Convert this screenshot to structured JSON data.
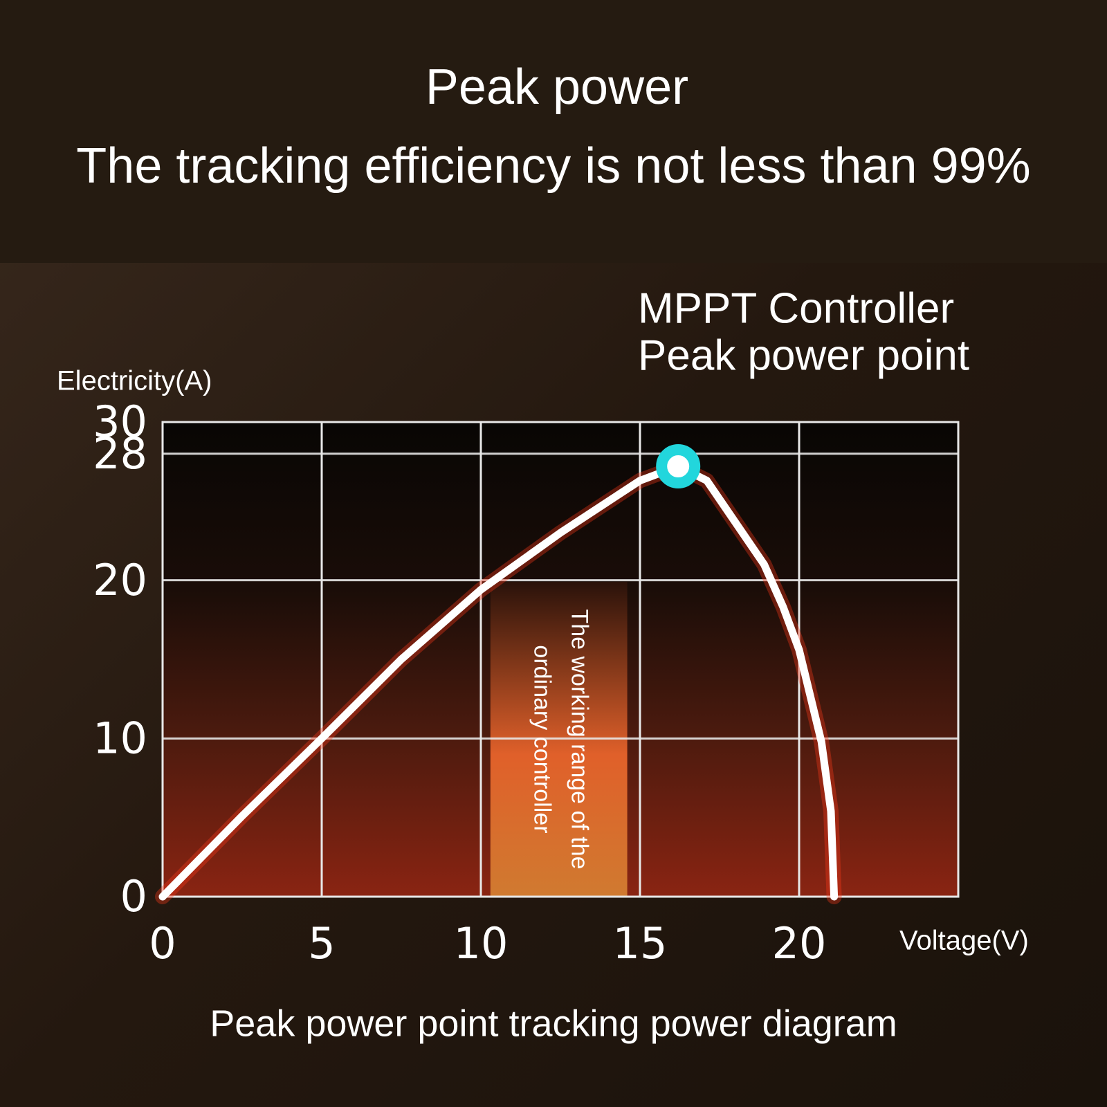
{
  "chart_data": {
    "type": "line",
    "title": "Peak power",
    "subtitle": "The tracking efficiency is not less than 99%",
    "ylabel": "Electricity(A)",
    "xlabel": "Voltage(V)",
    "caption": "Peak power point tracking power diagram",
    "x": [
      0,
      2.5,
      5,
      7.5,
      10,
      12.5,
      15,
      16.2,
      17.1,
      18.9,
      19.5,
      20,
      20.7,
      21,
      21.1
    ],
    "values": [
      0,
      5.1,
      10,
      15,
      19.4,
      23,
      26.3,
      27.2,
      26.3,
      21,
      18.3,
      15.6,
      9.8,
      5.4,
      0
    ],
    "color": "#ffffff",
    "xlim": [
      0,
      25
    ],
    "xticks": [
      0,
      5,
      10,
      15,
      20
    ],
    "ylim": [
      0,
      30
    ],
    "yticks": [
      0,
      10,
      20,
      28,
      30
    ],
    "grid": true,
    "peak_point": {
      "x": 16.2,
      "y": 27.2,
      "color": "#22d6dc",
      "label": [
        "MPPT Controller",
        "Peak power point"
      ]
    },
    "range_band": {
      "x": [
        10.3,
        14.6
      ],
      "y": 19.9,
      "label": [
        "The working range of the",
        "ordinary controller"
      ]
    }
  }
}
